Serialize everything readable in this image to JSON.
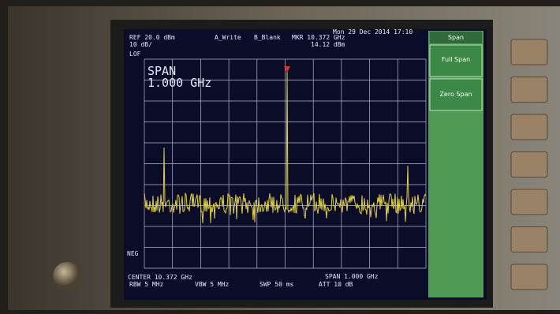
{
  "header": {
    "ref_level": "REF 20.0 dBm",
    "scale": "10 dB/",
    "lof": "LOF",
    "trace_a": "A_Write",
    "trace_b": "B_Blank",
    "marker_freq": "MKR 10.372 GHz",
    "marker_level": "14.12 dBm",
    "datetime": "Mon 29 Dec 2014 17:10"
  },
  "active_function": {
    "label": "SPAN",
    "value": "1.000 GHz"
  },
  "detector": "NEG",
  "footer": {
    "center": "CENTER 10.372 GHz",
    "span": "SPAN 1.000 GHz",
    "rbw": "RBW 5 MHz",
    "vbw": "VBW 5 MHz",
    "sweep": "SWP 50 ms",
    "attenuation": "ATT 10 dB"
  },
  "softkeys": {
    "title": "Span",
    "items": [
      "Full Span",
      "Zero Span"
    ]
  }
}
